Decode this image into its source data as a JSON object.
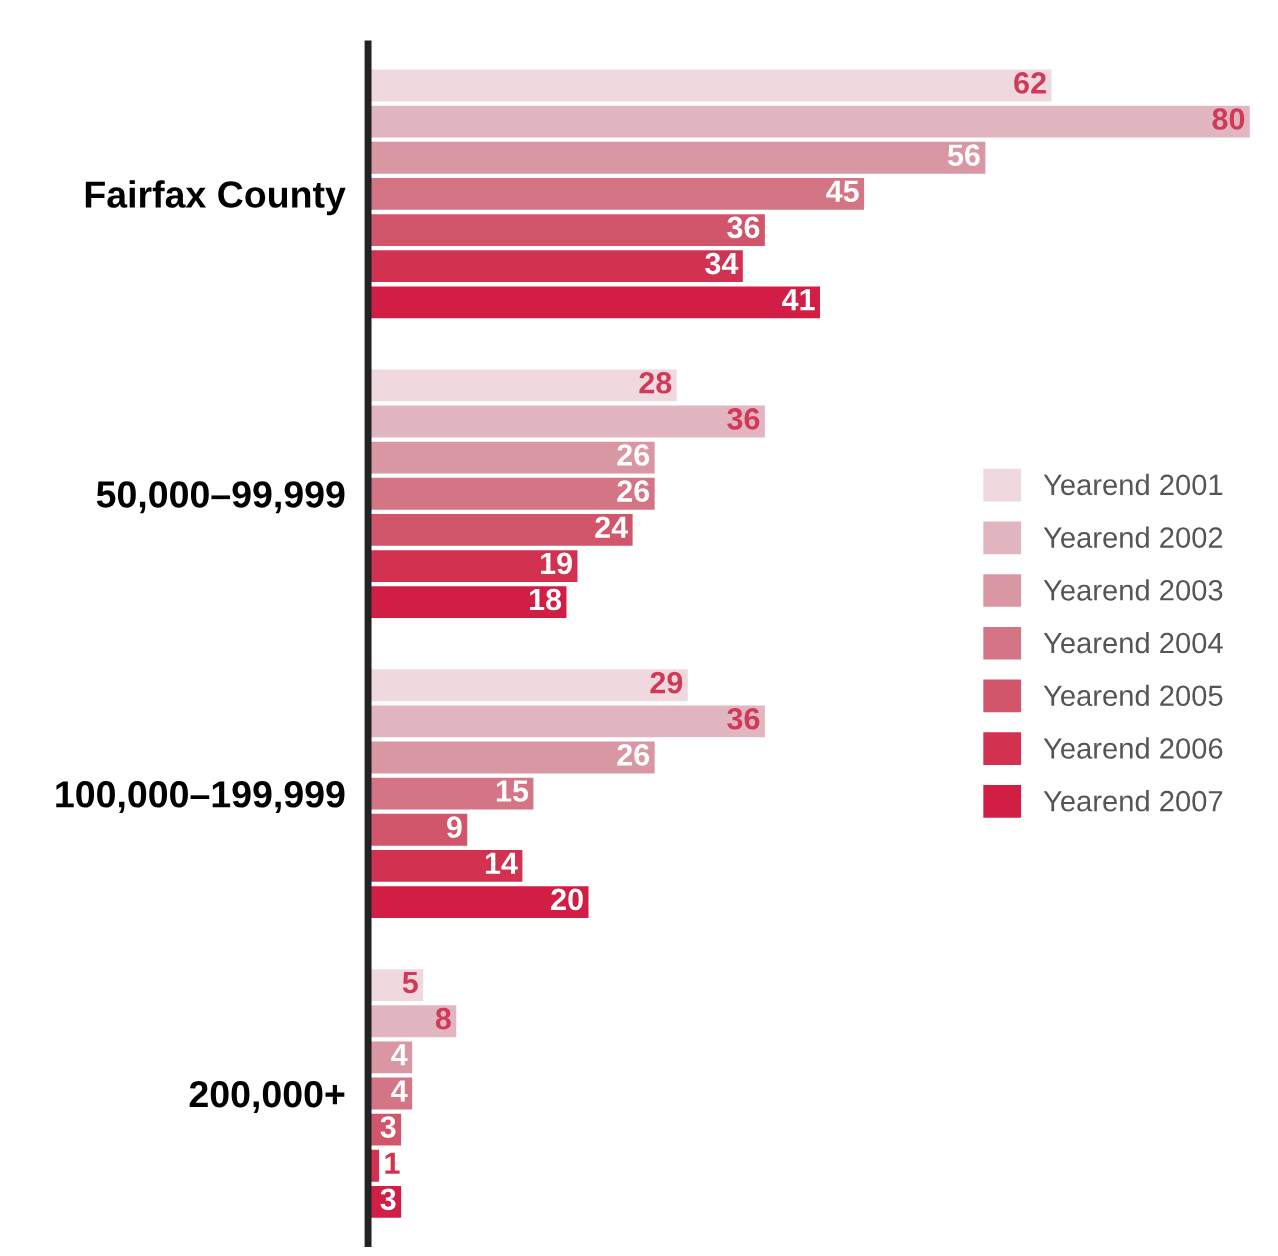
{
  "chart_data": {
    "type": "bar",
    "orientation": "horizontal",
    "categories": [
      "Fairfax County",
      "50,000–99,999",
      "100,000–199,999",
      "200,000+"
    ],
    "series": [
      {
        "name": "Yearend 2001",
        "color": "#efd9df",
        "values": [
          62,
          28,
          29,
          5
        ]
      },
      {
        "name": "Yearend 2002",
        "color": "#e2b6c0",
        "values": [
          80,
          36,
          36,
          8
        ]
      },
      {
        "name": "Yearend 2003",
        "color": "#d996a3",
        "values": [
          56,
          26,
          26,
          4
        ]
      },
      {
        "name": "Yearend 2004",
        "color": "#d47585",
        "values": [
          45,
          26,
          15,
          4
        ]
      },
      {
        "name": "Yearend 2005",
        "color": "#d2566b",
        "values": [
          36,
          24,
          9,
          3
        ]
      },
      {
        "name": "Yearend 2006",
        "color": "#d23250",
        "values": [
          34,
          19,
          14,
          1
        ]
      },
      {
        "name": "Yearend 2007",
        "color": "#d21e44",
        "values": [
          41,
          18,
          20,
          3
        ]
      }
    ],
    "xlim": [
      0,
      80
    ],
    "data_labels": true,
    "legend": "right",
    "grid": false,
    "tick_labels": "y"
  }
}
